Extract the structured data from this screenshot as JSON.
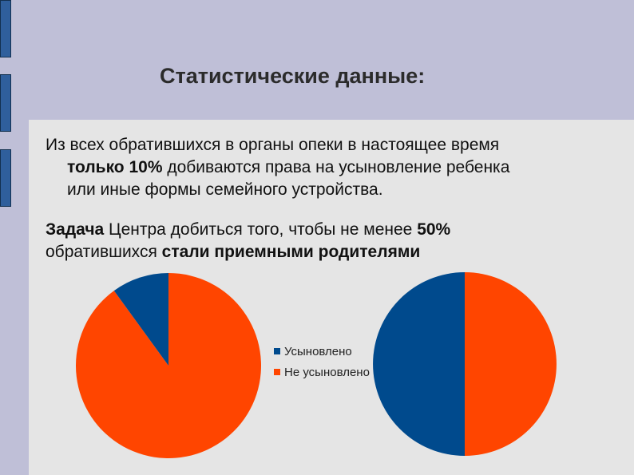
{
  "slide": {
    "title": "Статистические данные:",
    "paragraph1": {
      "line1": "Из всех обратившихся в органы опеки в настоящее время",
      "line2_bold": "только 10%",
      "line2_rest": " добиваются права на усыновление ребенка",
      "line3": "или иные формы семейного устройства."
    },
    "paragraph2": {
      "bold1": "Задача",
      "text1": " Центра добиться того, чтобы  не менее ",
      "bold2": "50%",
      "text2": "обратившихся  ",
      "bold3": "стали приемными родителями"
    }
  },
  "colors": {
    "adopted": "#004a8d",
    "not_adopted": "#ff4500"
  },
  "chart_data": [
    {
      "type": "pie",
      "title": "",
      "categories": [
        "Усыновлено",
        "Не усыновлено"
      ],
      "values": [
        10,
        90
      ],
      "legend": "right"
    },
    {
      "type": "pie",
      "title": "",
      "categories": [
        "Усыновлено",
        "Не усыновлено"
      ],
      "values": [
        50,
        50
      ]
    }
  ]
}
